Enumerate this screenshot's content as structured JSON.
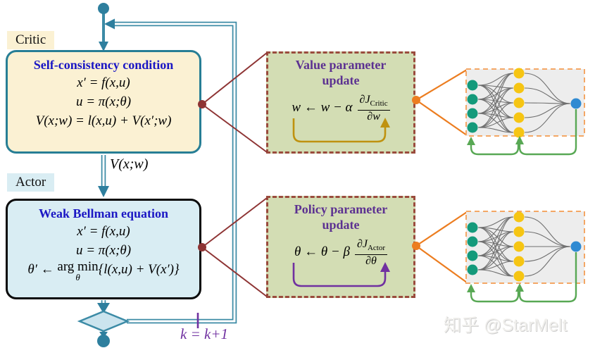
{
  "flow": {
    "critic_tag": "Critic",
    "actor_tag": "Actor",
    "critic_box": {
      "title": "Self-consistency condition",
      "eq1": "x′ = f(x,u)",
      "eq2": "u = π(x;θ)",
      "eq3": "V(x;w) = l(x,u) + V(x′;w)"
    },
    "signal_label": "V(x;w)",
    "actor_box": {
      "title": "Weak Bellman equation",
      "eq1": "x′ = f(x,u)",
      "eq2": "u = π(x;θ)",
      "eq3_lhs": "θ′ ← ",
      "eq3_op": "arg min",
      "eq3_op_sub": "θ",
      "eq3_rhs": "{l(x,u) + V(x′)}"
    },
    "value_box": {
      "title1": "Value parameter",
      "title2": "update",
      "eq_lhs": "w ← w − α",
      "num_main": "∂J",
      "num_sub": "Critic",
      "den": "∂w"
    },
    "policy_box": {
      "title1": "Policy parameter",
      "title2": "update",
      "eq_lhs": "θ ← θ − β",
      "num_main": "∂J",
      "num_sub": "Actor",
      "den": "∂θ"
    },
    "iteration_label": "k = k+1",
    "watermark": "知乎 @StarMelt"
  },
  "colors": {
    "flow_teal": "#3c8ba6",
    "node_teal": "#2e7f9e",
    "critic_fill": "#fbf1d3",
    "critic_border": "#277e95",
    "actor_fill": "#d9edf3",
    "box_title_blue": "#1b17c4",
    "update_fill": "#d3ddb4",
    "update_border": "#9a4b3d",
    "update_title_purple": "#5c3191",
    "callout_red": "#8e3434",
    "callout_orange": "#ec7d20",
    "nn_input_green": "#149a7b",
    "nn_hidden_yellow": "#f6c513",
    "nn_output_blue": "#2f8ad2",
    "nn_feedback_green": "#58a854",
    "value_arrow_gold": "#bf920f",
    "policy_arrow_purple": "#7030a0",
    "iteration_purple": "#7030a0"
  }
}
